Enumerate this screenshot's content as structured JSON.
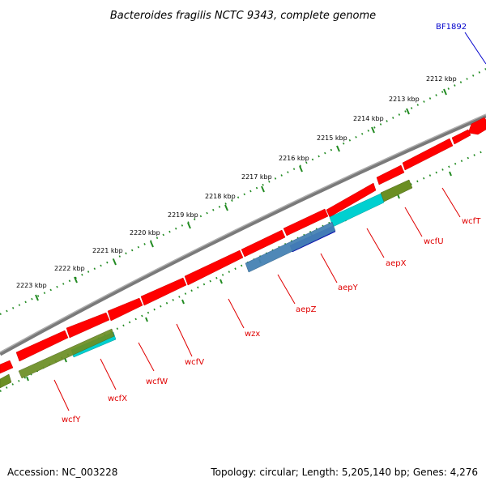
{
  "title": "Bacteroides fragilis NCTC 9343, complete genome",
  "callout": {
    "label": "BF1892",
    "color": "#0000cc"
  },
  "footer": {
    "accession": "Accession: NC_003228",
    "summary": "Topology: circular; Length: 5,205,140 bp; Genes: 4,276"
  },
  "kbp_labels": [
    "2212 kbp",
    "2213 kbp",
    "2214 kbp",
    "2215 kbp",
    "2216 kbp",
    "2217 kbp",
    "2218 kbp",
    "2219 kbp",
    "2220 kbp",
    "2221 kbp",
    "2222 kbp",
    "2223 kbp"
  ],
  "genes": [
    {
      "name": "wcfT",
      "color": "#ff0000"
    },
    {
      "name": "wcfU",
      "color": "#6b8e23"
    },
    {
      "name": "aepX",
      "color": "#00d0d0"
    },
    {
      "name": "aepY",
      "color": "#0000e0"
    },
    {
      "name": "aepZ",
      "color": "#4682b4"
    },
    {
      "name": "wzx",
      "color": "#ff0000"
    },
    {
      "name": "wcfV",
      "color": "#ff0000"
    },
    {
      "name": "wcfW",
      "color": "#ff0000"
    },
    {
      "name": "wcfX",
      "color": "#00d0d0"
    },
    {
      "name": "wcfY",
      "color": "#6b8e23"
    }
  ],
  "colors": {
    "backbone": "#808080",
    "tick_dots": "#228b22",
    "feature_default": "#ff0000",
    "label": "#e00000"
  }
}
